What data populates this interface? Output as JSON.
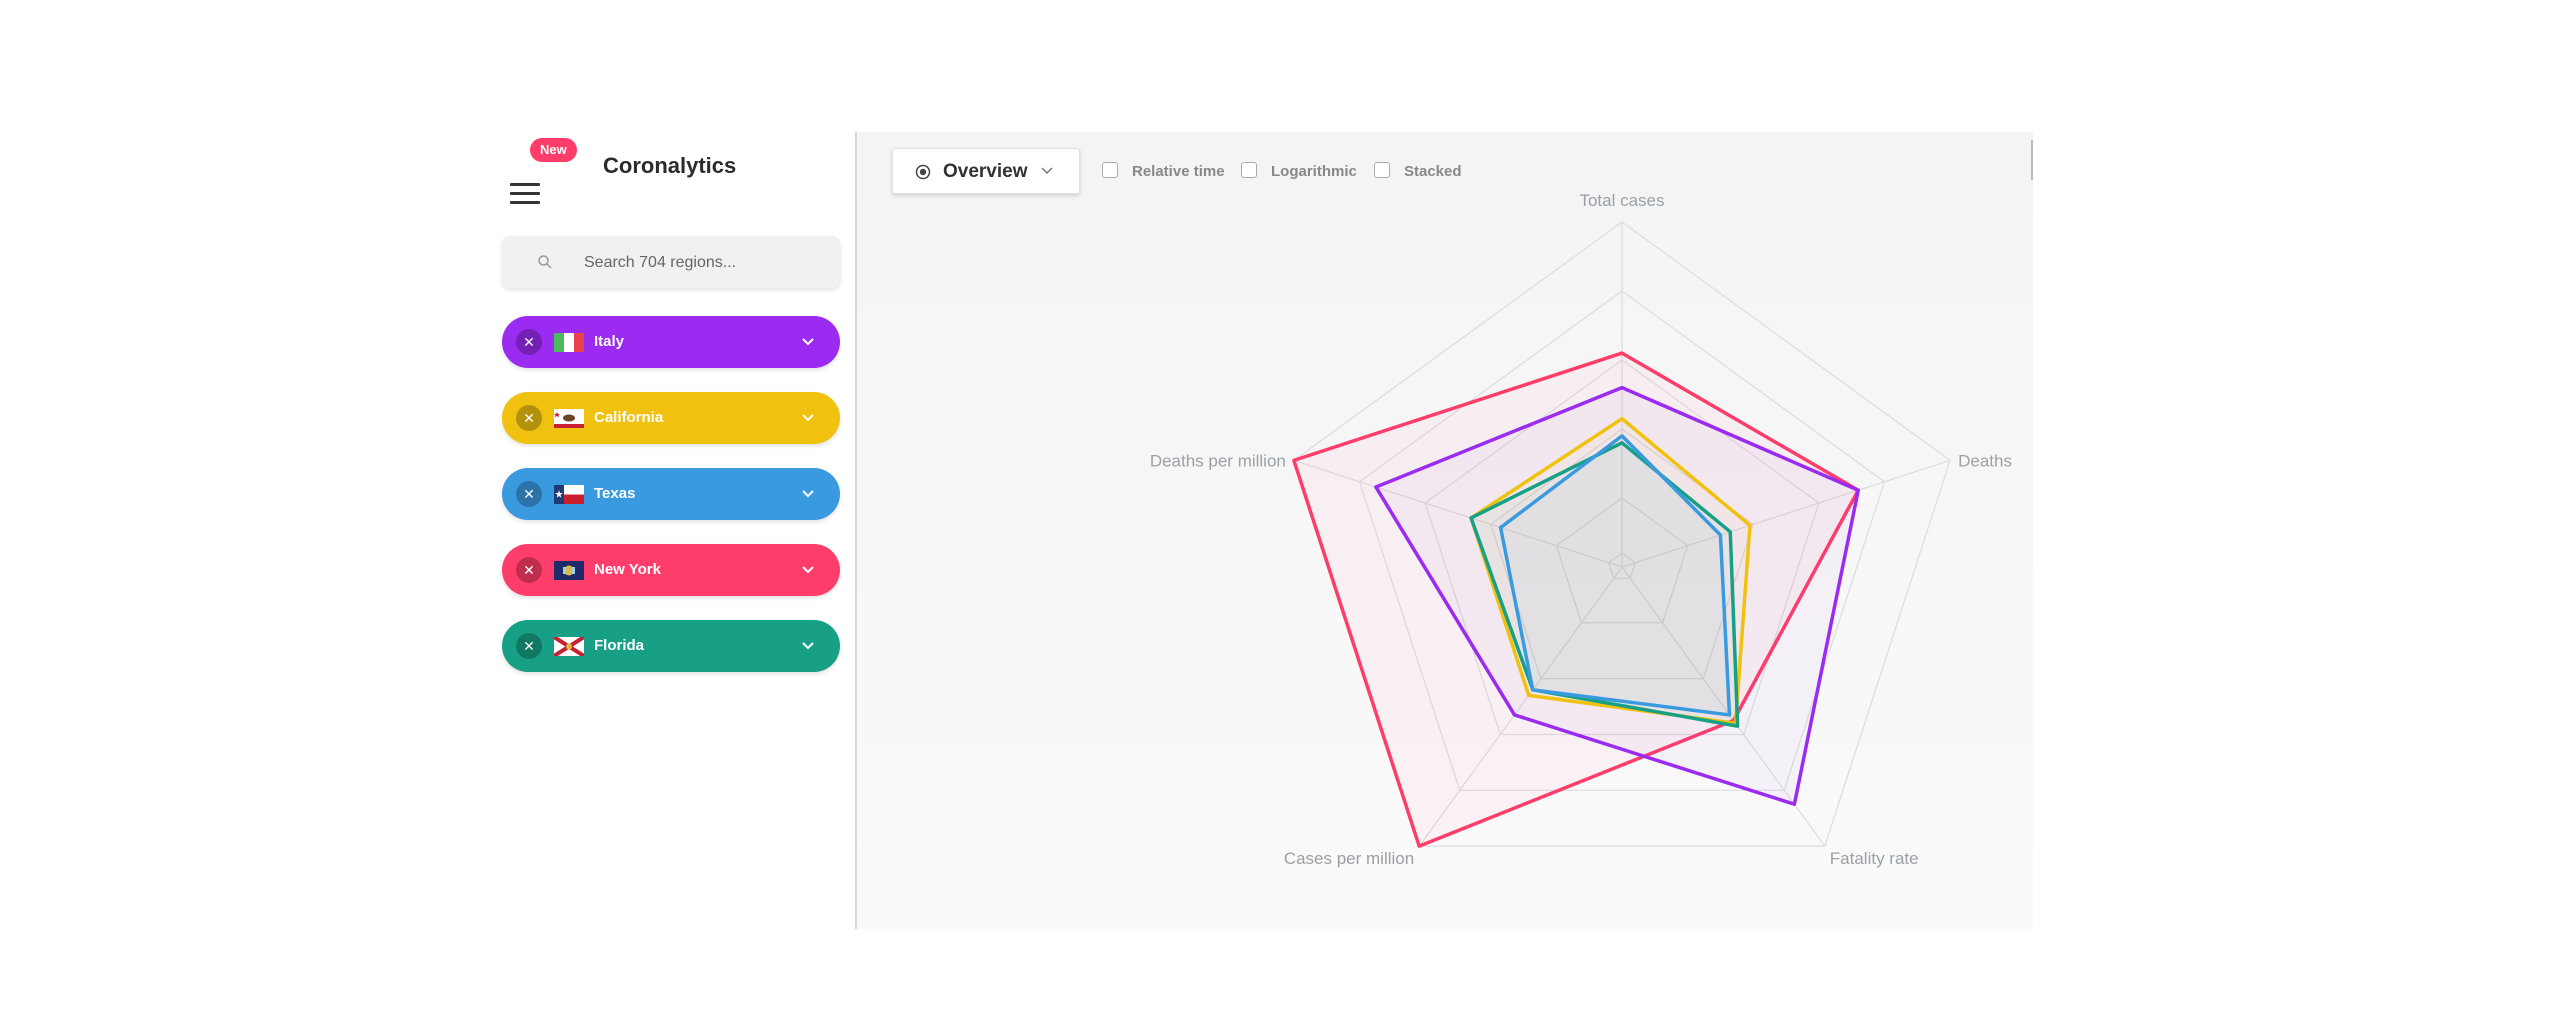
{
  "app": {
    "title": "Coronalytics",
    "new_badge": "New"
  },
  "search": {
    "placeholder": "Search 704 regions..."
  },
  "regions": [
    {
      "name": "Italy",
      "color": "#9b2bf0"
    },
    {
      "name": "California",
      "color": "#f0c20f"
    },
    {
      "name": "Texas",
      "color": "#3a9ae0"
    },
    {
      "name": "New York",
      "color": "#ff3d6a"
    },
    {
      "name": "Florida",
      "color": "#17a086"
    }
  ],
  "toolbar": {
    "view_label": "Overview",
    "options": [
      "Relative time",
      "Logarithmic",
      "Stacked"
    ]
  },
  "chart_data": {
    "type": "radar",
    "axes": [
      "Total cases",
      "Deaths",
      "Fatality rate",
      "Cases per million",
      "Deaths per million"
    ],
    "rings": 5,
    "max": 1,
    "series": [
      {
        "name": "New York",
        "color": "#ff3d6a",
        "values": [
          0.62,
          0.72,
          0.55,
          1.0,
          1.0
        ]
      },
      {
        "name": "Italy",
        "color": "#9b2bf0",
        "values": [
          0.52,
          0.72,
          0.85,
          0.53,
          0.75
        ]
      },
      {
        "name": "California",
        "color": "#f0c20f",
        "values": [
          0.43,
          0.39,
          0.56,
          0.46,
          0.46
        ]
      },
      {
        "name": "Florida",
        "color": "#17a086",
        "values": [
          0.36,
          0.33,
          0.57,
          0.44,
          0.46
        ]
      },
      {
        "name": "Texas",
        "color": "#3a9ae0",
        "values": [
          0.38,
          0.3,
          0.53,
          0.44,
          0.37
        ]
      }
    ]
  }
}
